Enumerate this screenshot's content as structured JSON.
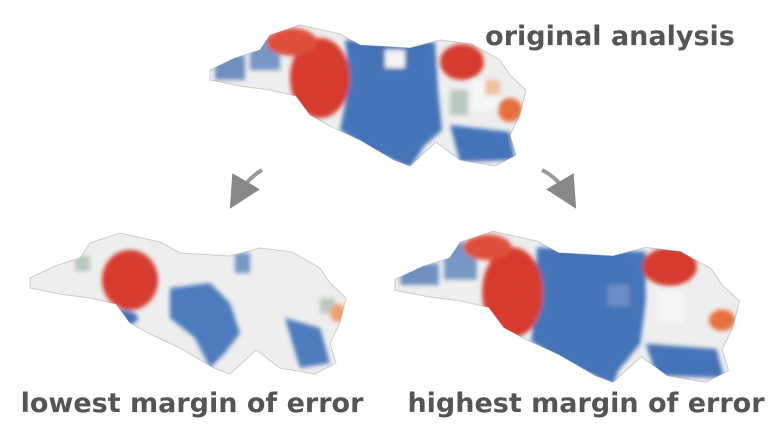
{
  "title": "original analysis",
  "panels": [
    {
      "label": "lowest margin of error"
    },
    {
      "label": "highest margin of error"
    }
  ]
}
